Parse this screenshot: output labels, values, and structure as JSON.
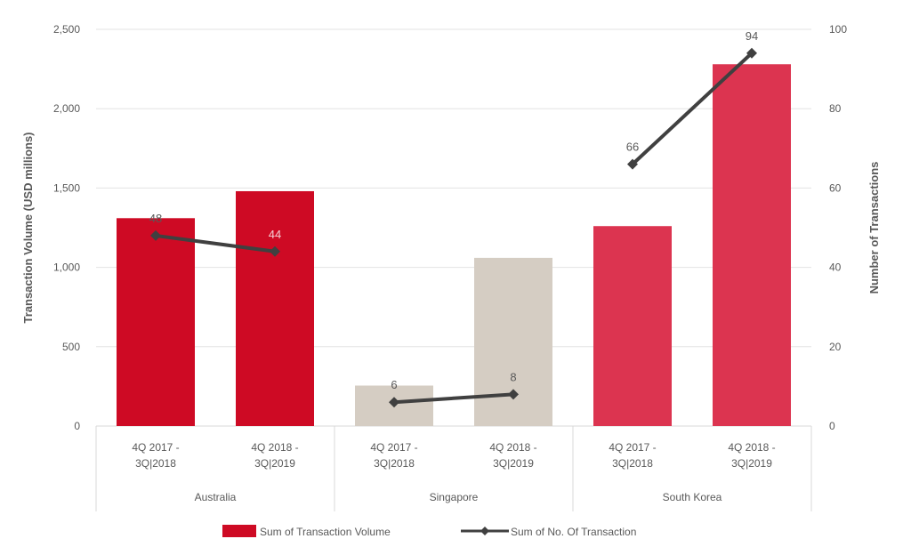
{
  "chart_data": {
    "type": "bar+line",
    "ylabel": "Transaction Volume (USD millions)",
    "y2label": "Number of Transactions",
    "ylim": [
      0,
      2500
    ],
    "y2lim": [
      0,
      100
    ],
    "yticks": [
      "0",
      "500",
      "1,000",
      "1,500",
      "2,000",
      "2,500"
    ],
    "y2ticks": [
      "0",
      "20",
      "40",
      "60",
      "80",
      "100"
    ],
    "grid": true,
    "legend_position": "bottom",
    "groups": [
      {
        "name": "Australia",
        "color": "#CE0A24",
        "periods": [
          "4Q 2017 - 3Q|2018",
          "4Q 2018 - 3Q|2019"
        ],
        "volume": [
          1310,
          1480
        ],
        "transactions": [
          48,
          44
        ]
      },
      {
        "name": "Singapore",
        "color": "#D5CDC3",
        "periods": [
          "4Q 2017 - 3Q|2018",
          "4Q 2018 - 3Q|2019"
        ],
        "volume": [
          255,
          1060
        ],
        "transactions": [
          6,
          8
        ]
      },
      {
        "name": "South Korea",
        "color": "#DC3450",
        "periods": [
          "4Q 2017 - 3Q|2018",
          "4Q 2018 - 3Q|2019"
        ],
        "volume": [
          1260,
          2280
        ],
        "transactions": [
          66,
          94
        ]
      }
    ],
    "series": [
      {
        "name": "Sum of Transaction Volume",
        "kind": "bar",
        "color": "#CE0A24"
      },
      {
        "name": "Sum of No. Of Transaction",
        "kind": "line",
        "color": "#404040"
      }
    ]
  }
}
